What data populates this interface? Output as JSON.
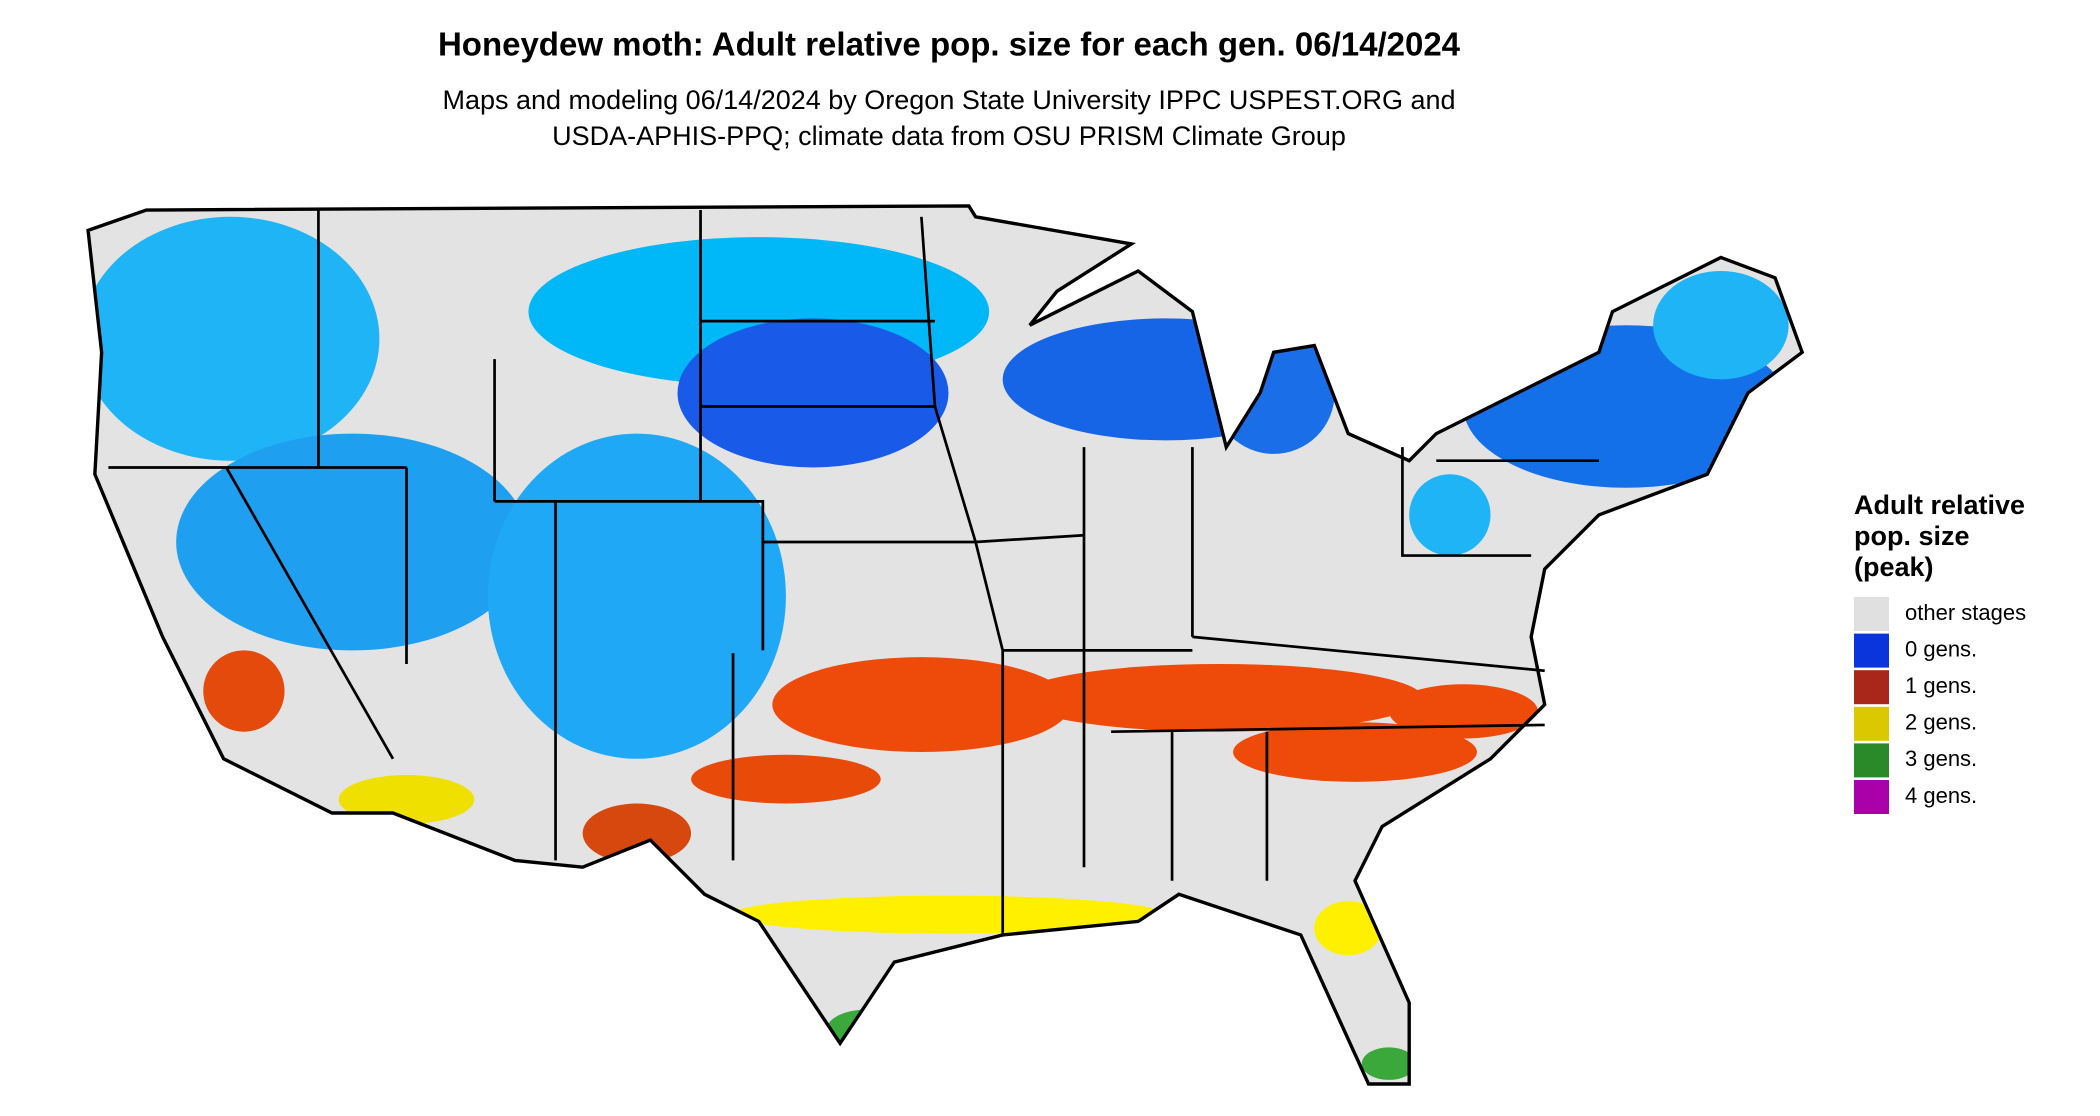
{
  "header": {
    "title": "Honeydew moth: Adult relative pop. size for each gen. 06/14/2024",
    "subtitle_lines": [
      "Maps and modeling 06/14/2024 by Oregon State University IPPC USPEST.ORG and",
      "USDA-APHIS-PPQ; climate data from OSU PRISM Climate Group"
    ]
  },
  "legend": {
    "title_lines": [
      "Adult relative",
      "pop. size",
      "(peak)"
    ],
    "items": [
      {
        "label": "other stages",
        "color": "#e0e0e0"
      },
      {
        "label": "0 gens.",
        "color": "#0a34dc"
      },
      {
        "label": "1 gens.",
        "color": "#a8261a"
      },
      {
        "label": "2 gens.",
        "color": "#dcc800"
      },
      {
        "label": "3 gens.",
        "color": "#2a8a2a"
      },
      {
        "label": "4 gens.",
        "color": "#aa00aa"
      }
    ]
  }
}
